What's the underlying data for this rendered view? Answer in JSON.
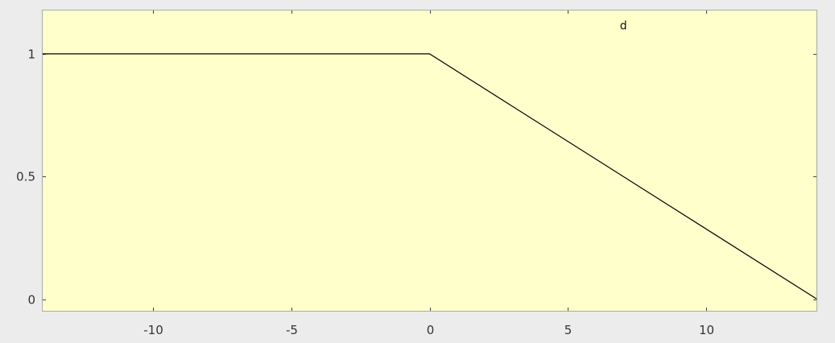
{
  "chart_data": {
    "type": "line",
    "title": "",
    "xlabel": "",
    "ylabel": "",
    "xlim": [
      -14,
      14
    ],
    "ylim": [
      -0.05,
      1.18
    ],
    "x_ticks": [
      -10,
      -5,
      0,
      5,
      10
    ],
    "x_tick_labels": [
      "-10",
      "-5",
      "0",
      "5",
      "10"
    ],
    "y_ticks": [
      0,
      0.5,
      1
    ],
    "y_tick_labels": [
      "0",
      "0.5",
      "1"
    ],
    "grid": false,
    "annotations": [
      {
        "text": "d",
        "x": 7,
        "y": 1.1
      }
    ],
    "series": [
      {
        "x": [
          -14,
          0,
          14
        ],
        "y": [
          1,
          1,
          0
        ]
      }
    ]
  },
  "colors": {
    "page_background": "#ececec",
    "axes_background": "#ffffcc",
    "axes_border": "#aaaaaa",
    "line": "#000000"
  }
}
